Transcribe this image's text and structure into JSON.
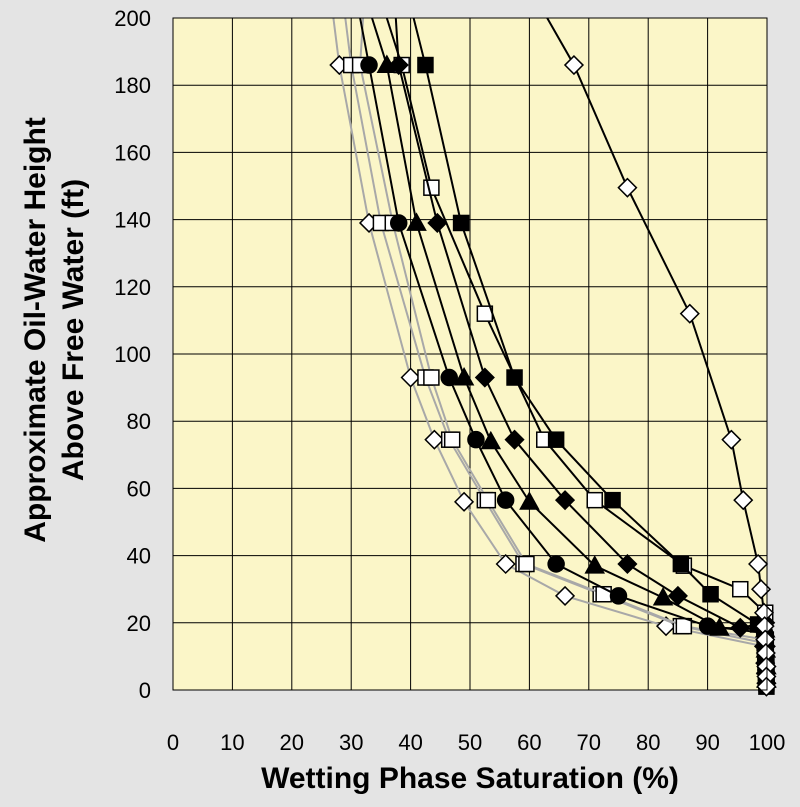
{
  "chart_data": {
    "type": "line",
    "title": "",
    "xlabel": "Wetting Phase Saturation (%)",
    "ylabel_lines": [
      "Approximate Oil-Water Height",
      "Above Free Water (ft)"
    ],
    "xlim": [
      0,
      100
    ],
    "ylim": [
      0,
      200
    ],
    "xticks": [
      0,
      10,
      20,
      30,
      40,
      50,
      60,
      70,
      80,
      90,
      100
    ],
    "yticks": [
      0,
      20,
      40,
      60,
      80,
      100,
      120,
      140,
      160,
      180,
      200
    ],
    "grid": true,
    "legend": "none",
    "colors": {
      "plot_bg": "#fbf6c8",
      "page_bg": "#e4e4e4",
      "grid": "#000000",
      "gray_line": "#a8a8a8",
      "black_line": "#000000"
    },
    "series": [
      {
        "marker": "diamond-open",
        "line": "gray",
        "points": [
          [
            27,
            200
          ],
          [
            28,
            186
          ],
          [
            33,
            139
          ],
          [
            40,
            93
          ],
          [
            44,
            74.5
          ],
          [
            49,
            56
          ],
          [
            56,
            37.5
          ],
          [
            66,
            28
          ],
          [
            83,
            19
          ],
          [
            99.5,
            13
          ],
          [
            99.7,
            8
          ],
          [
            99.8,
            5
          ],
          [
            99.9,
            2
          ]
        ]
      },
      {
        "marker": "square-open",
        "line": "gray",
        "points": [
          [
            29,
            200
          ],
          [
            30,
            186
          ],
          [
            35,
            139
          ],
          [
            42.5,
            93
          ],
          [
            46.5,
            74.5
          ],
          [
            52.5,
            56.5
          ],
          [
            59,
            37.5
          ],
          [
            72,
            28.5
          ],
          [
            85.5,
            19
          ],
          [
            99.6,
            14
          ],
          [
            99.7,
            9
          ],
          [
            99.8,
            5
          ],
          [
            99.9,
            2
          ]
        ]
      },
      {
        "marker": "square-open",
        "line": "gray",
        "points": [
          [
            32,
            200
          ],
          [
            31.5,
            186
          ],
          [
            37,
            139
          ],
          [
            43.5,
            93
          ],
          [
            47,
            74.5
          ],
          [
            53,
            56.5
          ],
          [
            59.5,
            37.5
          ],
          [
            72.5,
            28.5
          ],
          [
            86,
            19
          ],
          [
            99.7,
            15
          ],
          [
            99.8,
            10
          ],
          [
            99.9,
            6
          ],
          [
            99.9,
            3
          ]
        ]
      },
      {
        "marker": "circle-filled",
        "line": "black",
        "points": [
          [
            31.5,
            200
          ],
          [
            33,
            186
          ],
          [
            38,
            139
          ],
          [
            46.5,
            93
          ],
          [
            51,
            74.5
          ],
          [
            56,
            56.5
          ],
          [
            64.5,
            37.5
          ],
          [
            75,
            28
          ],
          [
            90,
            19
          ],
          [
            99.6,
            17
          ],
          [
            99.7,
            11
          ],
          [
            99.8,
            6
          ],
          [
            99.9,
            2
          ]
        ]
      },
      {
        "marker": "triangle-filled",
        "line": "black",
        "points": [
          [
            33.5,
            200
          ],
          [
            36,
            186
          ],
          [
            41,
            139
          ],
          [
            49,
            93
          ],
          [
            53.5,
            74
          ],
          [
            60,
            56
          ],
          [
            71,
            37
          ],
          [
            82.5,
            27.5
          ],
          [
            92,
            18.5
          ],
          [
            99.7,
            18
          ],
          [
            99.8,
            12
          ],
          [
            99.9,
            7
          ],
          [
            99.9,
            3
          ]
        ]
      },
      {
        "marker": "square-open",
        "line": "black",
        "points": [
          [
            36,
            200
          ],
          [
            38.5,
            186
          ],
          [
            43.5,
            149.5
          ],
          [
            52.5,
            112
          ],
          [
            62.5,
            74.5
          ],
          [
            71,
            56.5
          ],
          [
            86,
            37
          ],
          [
            95.5,
            30
          ],
          [
            99.7,
            23
          ],
          [
            99.8,
            15
          ],
          [
            99.9,
            8
          ],
          [
            99.9,
            3
          ]
        ]
      },
      {
        "marker": "diamond-filled",
        "line": "black",
        "points": [
          [
            37.5,
            200
          ],
          [
            38,
            186
          ],
          [
            44.5,
            139
          ],
          [
            52.5,
            93
          ],
          [
            57.5,
            74.5
          ],
          [
            66,
            56.5
          ],
          [
            76.5,
            37.5
          ],
          [
            85,
            28
          ],
          [
            95.5,
            18.5
          ],
          [
            99.7,
            20
          ],
          [
            99.8,
            13
          ],
          [
            99.9,
            7
          ],
          [
            99.9,
            2
          ]
        ]
      },
      {
        "marker": "square-filled",
        "line": "black",
        "points": [
          [
            40.5,
            200
          ],
          [
            42.5,
            186
          ],
          [
            48.5,
            139
          ],
          [
            57.5,
            93
          ],
          [
            64.5,
            74.5
          ],
          [
            74,
            56.5
          ],
          [
            85.5,
            37.5
          ],
          [
            90.5,
            28.5
          ],
          [
            98.5,
            19.5
          ],
          [
            99.7,
            15
          ],
          [
            99.8,
            9
          ],
          [
            99.9,
            4
          ],
          [
            99.9,
            1
          ]
        ]
      },
      {
        "marker": "diamond-open",
        "line": "black",
        "points": [
          [
            63,
            200
          ],
          [
            67.5,
            186
          ],
          [
            76.5,
            149.5
          ],
          [
            87,
            112
          ],
          [
            94,
            74.5
          ],
          [
            96,
            56.5
          ],
          [
            98.5,
            37.5
          ],
          [
            99,
            30
          ],
          [
            99.5,
            23
          ],
          [
            99.6,
            19
          ],
          [
            99.7,
            15
          ],
          [
            99.8,
            11
          ],
          [
            99.9,
            7
          ],
          [
            99.9,
            4
          ],
          [
            99.9,
            1
          ]
        ]
      }
    ]
  }
}
